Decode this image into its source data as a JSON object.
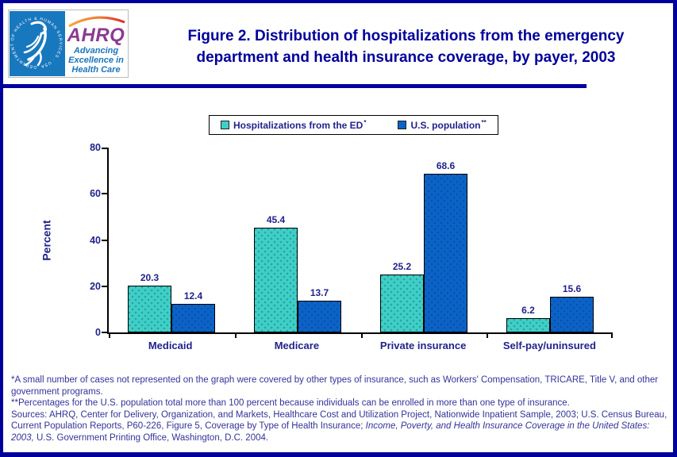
{
  "header": {
    "title_line1": "Figure 2. Distribution of hospitalizations from the emergency",
    "title_line2": "department and health insurance coverage, by payer, 2003",
    "logo": {
      "hhs_circular_text": "DEPARTMENT OF HEALTH & HUMAN SERVICES · USA",
      "ahrq_acronym": "AHRQ",
      "tagline": [
        "Advancing",
        "Excellence in",
        "Health Care"
      ]
    }
  },
  "chart_data": {
    "type": "bar",
    "categories": [
      "Medicaid",
      "Medicare",
      "Private insurance",
      "Self-pay/uninsured"
    ],
    "series": [
      {
        "name": "Hospitalizations from the ED",
        "legend_suffix": "*",
        "color": "#3fcfc9",
        "dot_color": "#2aa49b",
        "values": [
          20.3,
          45.4,
          25.2,
          6.2
        ]
      },
      {
        "name": "U.S. population",
        "legend_suffix": "**",
        "color": "#0b63c8",
        "dot_color": "#0a52a8",
        "values": [
          12.4,
          13.7,
          68.6,
          15.6
        ]
      }
    ],
    "title": "",
    "xlabel": "",
    "ylabel": "Percent",
    "ylim": [
      0,
      80
    ],
    "yticks": [
      0,
      20,
      40,
      60,
      80
    ],
    "grid": false,
    "legend_position": "top-center"
  },
  "footnotes": {
    "note1": "*A small number of cases not represented on the graph were covered by other types of insurance, such as Workers' Compensation, TRICARE, Title V, and other government programs.",
    "note2": "**Percentages for the U.S. population total more than 100 percent because individuals can be enrolled in more than one type of insurance.",
    "sources_prefix": "Sources: AHRQ, Center for Delivery, Organization, and Markets, Healthcare Cost and Utilization Project, Nationwide Inpatient Sample, 2003; U.S. Census Bureau, Current Population Reports, P60-226, Figure 5, Coverage by Type of Health Insurance; ",
    "sources_italic": "Income, Poverty, and Health Insurance Coverage in the United States: 2003,",
    "sources_suffix": " U.S. Government Printing Office, Washington, D.C. 2004."
  }
}
